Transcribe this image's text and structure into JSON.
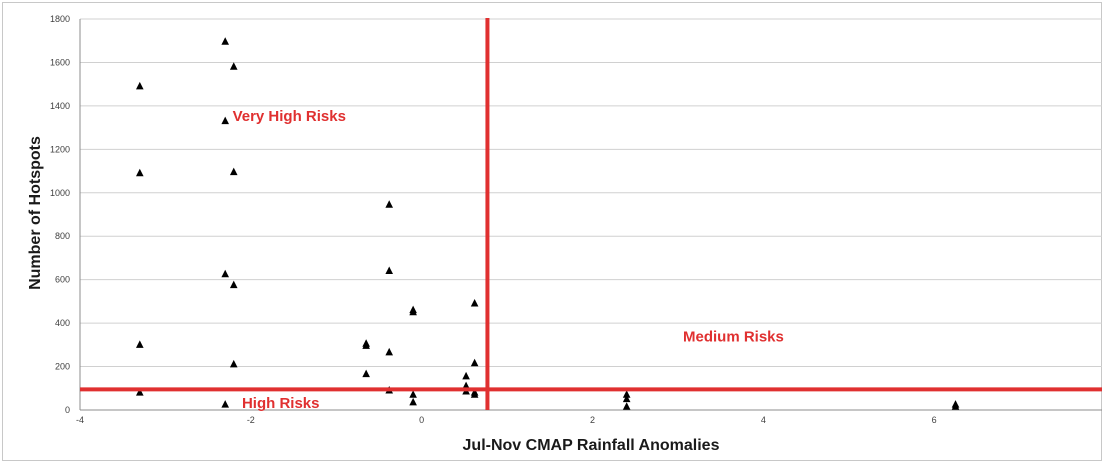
{
  "chart_data": {
    "type": "scatter",
    "xlabel": "Jul-Nov CMAP Rainfall Anomalies",
    "ylabel": "Number  of Hotspots",
    "xlim": [
      -4,
      8
    ],
    "ylim": [
      0,
      1800
    ],
    "x_ticks": [
      "-4",
      "-2",
      "0",
      "2",
      "4",
      "6"
    ],
    "y_ticks": [
      "0",
      "200",
      "400",
      "600",
      "800",
      "1000",
      "1200",
      "1400",
      "1600",
      "1800"
    ],
    "grid": "horizontal",
    "marker": "triangle",
    "marker_color": "#000000",
    "points": [
      {
        "x": -3.3,
        "y": 1490
      },
      {
        "x": -3.3,
        "y": 1090
      },
      {
        "x": -3.3,
        "y": 300
      },
      {
        "x": -3.3,
        "y": 80
      },
      {
        "x": -2.3,
        "y": 1695
      },
      {
        "x": -2.3,
        "y": 1330
      },
      {
        "x": -2.3,
        "y": 625
      },
      {
        "x": -2.3,
        "y": 25
      },
      {
        "x": -2.2,
        "y": 1580
      },
      {
        "x": -2.2,
        "y": 1095
      },
      {
        "x": -2.2,
        "y": 575
      },
      {
        "x": -2.2,
        "y": 210
      },
      {
        "x": -0.65,
        "y": 305
      },
      {
        "x": -0.65,
        "y": 295
      },
      {
        "x": -0.65,
        "y": 165
      },
      {
        "x": -0.38,
        "y": 945
      },
      {
        "x": -0.38,
        "y": 640
      },
      {
        "x": -0.38,
        "y": 265
      },
      {
        "x": -0.38,
        "y": 90
      },
      {
        "x": -0.1,
        "y": 460
      },
      {
        "x": -0.1,
        "y": 450
      },
      {
        "x": -0.1,
        "y": 70
      },
      {
        "x": -0.1,
        "y": 35
      },
      {
        "x": 0.52,
        "y": 155
      },
      {
        "x": 0.52,
        "y": 110
      },
      {
        "x": 0.52,
        "y": 85
      },
      {
        "x": 0.62,
        "y": 490
      },
      {
        "x": 0.62,
        "y": 215
      },
      {
        "x": 0.62,
        "y": 80
      },
      {
        "x": 0.62,
        "y": 70
      },
      {
        "x": 2.4,
        "y": 70
      },
      {
        "x": 2.4,
        "y": 50
      },
      {
        "x": 2.4,
        "y": 15
      },
      {
        "x": 6.25,
        "y": 25
      },
      {
        "x": 6.25,
        "y": 15
      }
    ],
    "threshold_lines": [
      {
        "orientation": "vertical",
        "value": 0.77,
        "color": "#e03030"
      },
      {
        "orientation": "horizontal",
        "value": 95,
        "color": "#e03030"
      }
    ],
    "annotations": [
      {
        "text": "Very High Risks",
        "x": -1.55,
        "y": 1330
      },
      {
        "text": "Medium Risks",
        "x": 3.65,
        "y": 315
      },
      {
        "text": "High Risks",
        "x": -1.65,
        "y": 10
      }
    ]
  }
}
